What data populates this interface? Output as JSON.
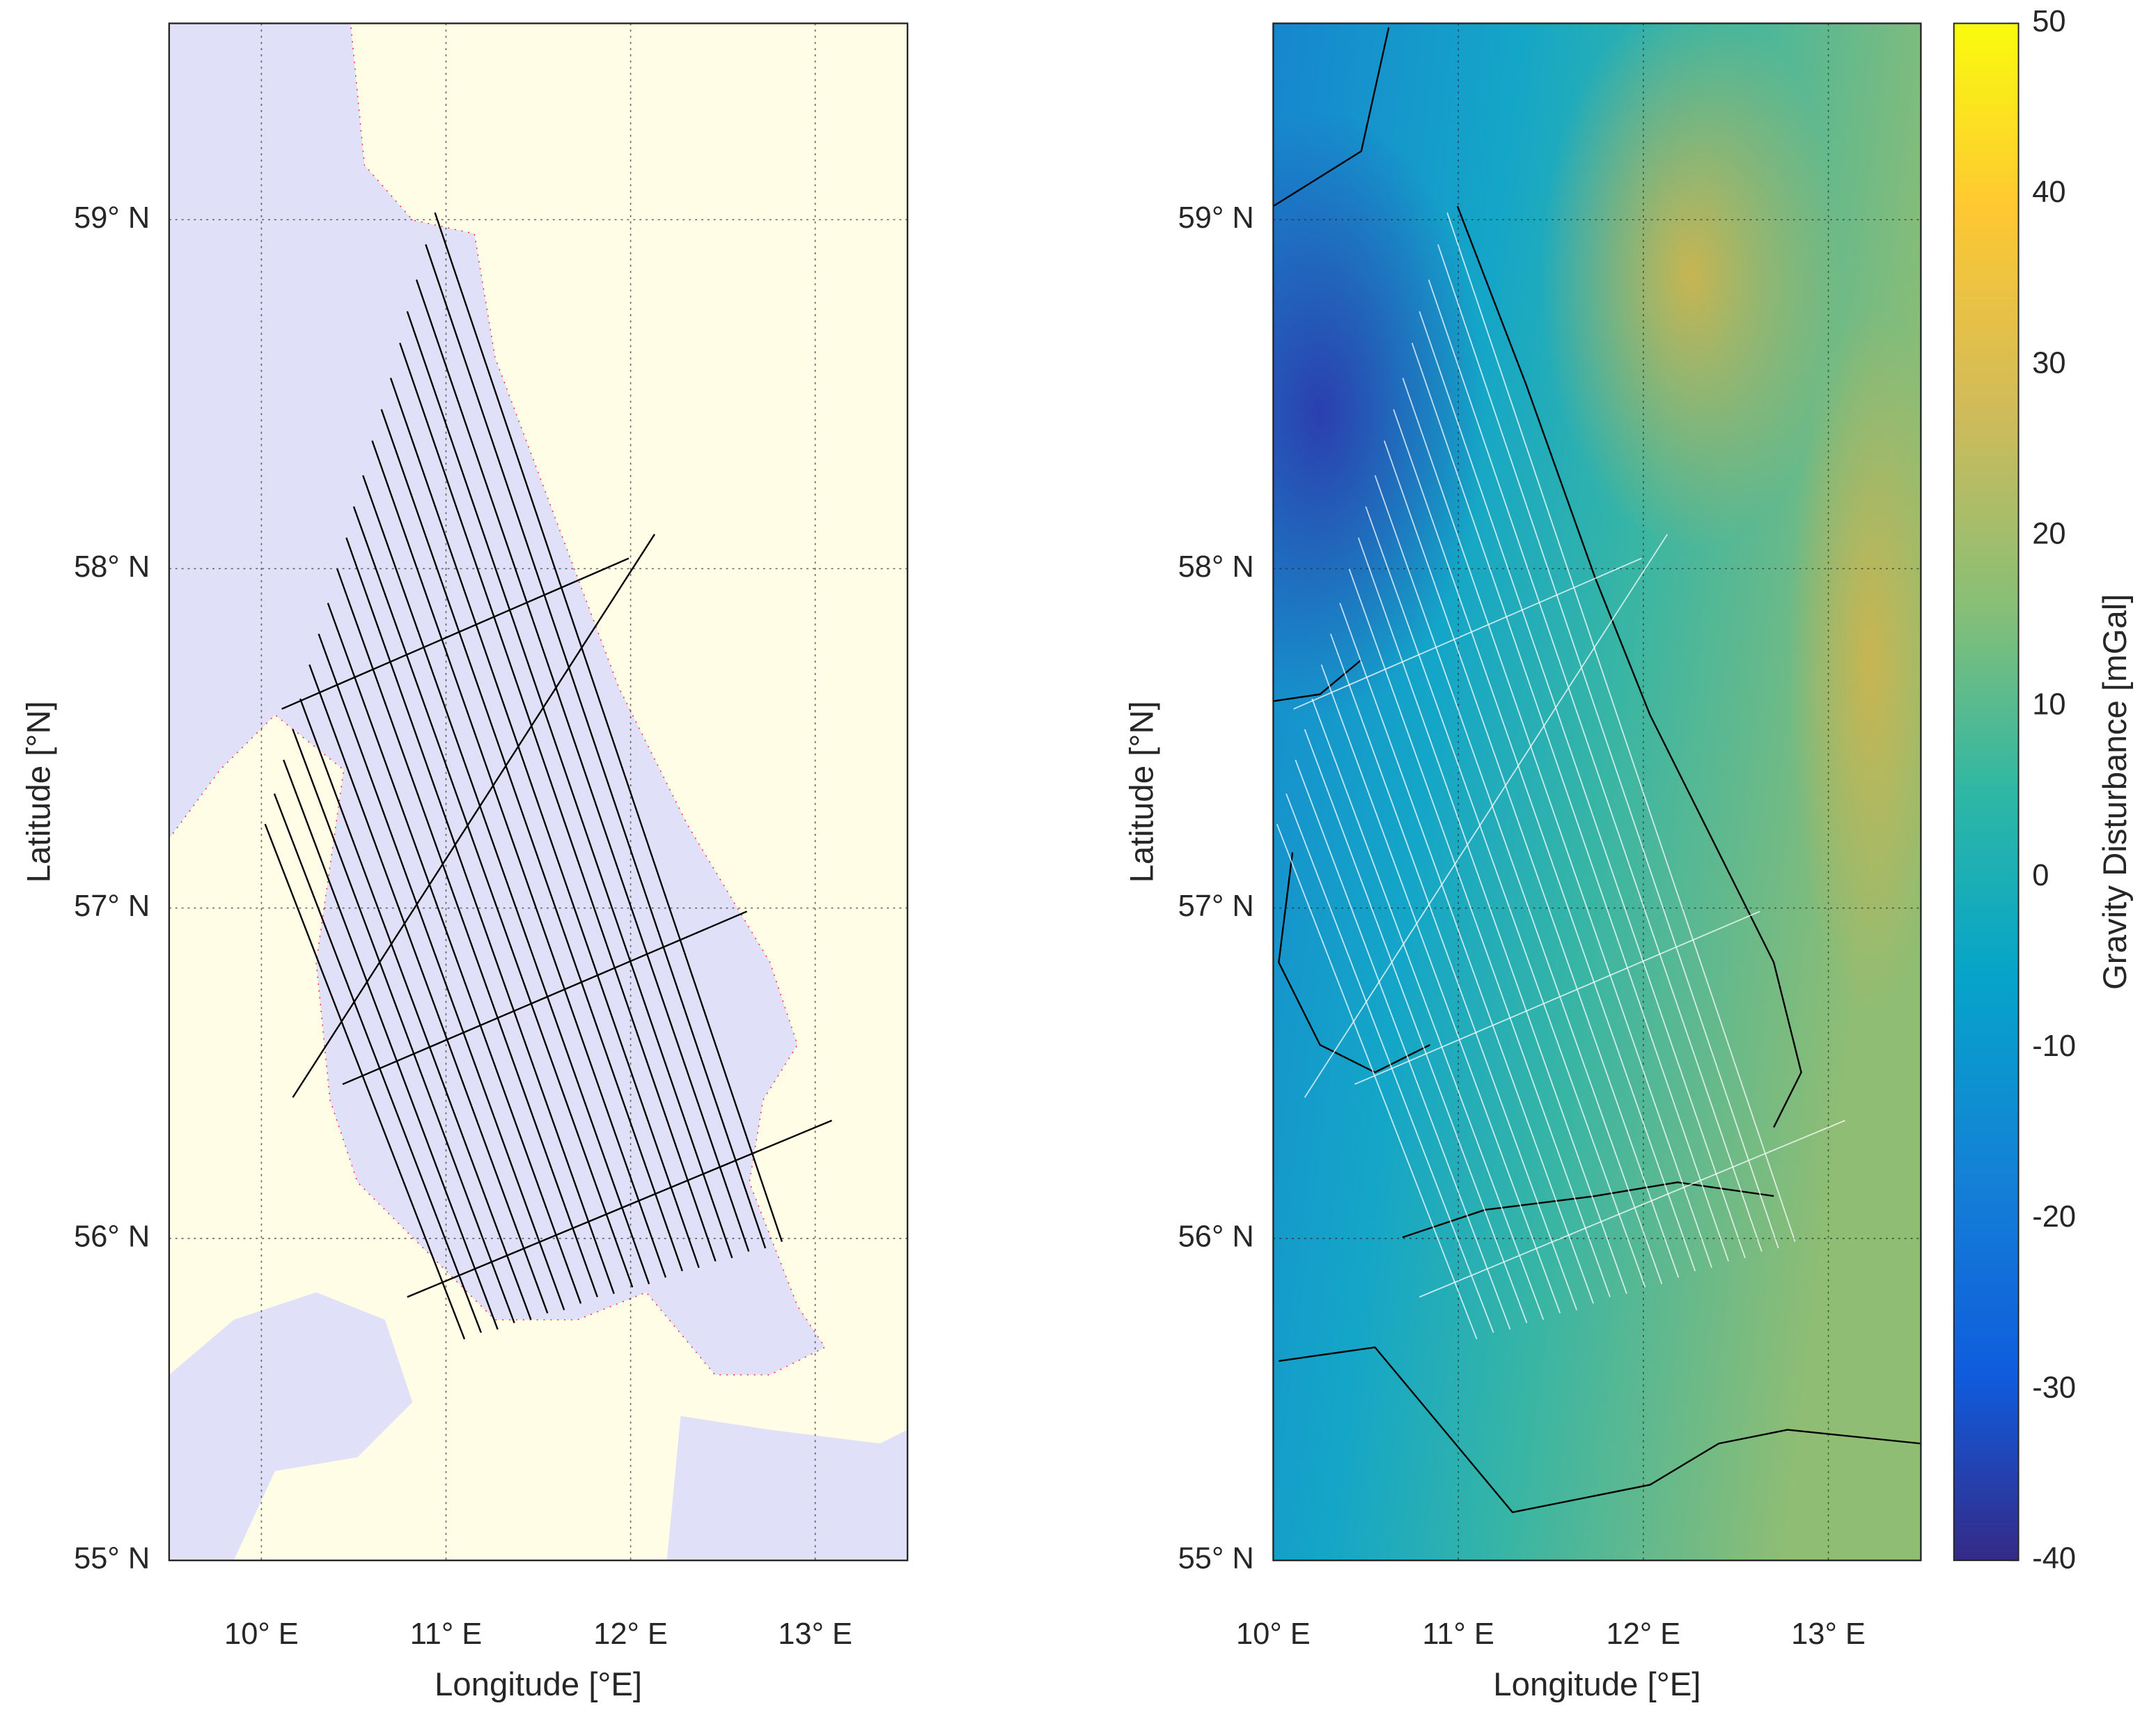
{
  "chart_data": [
    {
      "type": "map",
      "projection": "mercator",
      "xlabel": "Longitude [°E]",
      "ylabel": "Latitude [°N]",
      "xlim": [
        9.5,
        13.5
      ],
      "ylim": [
        55,
        59.55
      ],
      "xticks": [
        {
          "value": 10,
          "label": "10° E"
        },
        {
          "value": 11,
          "label": "11° E"
        },
        {
          "value": 12,
          "label": "12° E"
        },
        {
          "value": 13,
          "label": "13° E"
        }
      ],
      "yticks": [
        {
          "value": 55,
          "label": "55° N"
        },
        {
          "value": 56,
          "label": "56° N"
        },
        {
          "value": 57,
          "label": "57° N"
        },
        {
          "value": 58,
          "label": "58° N"
        },
        {
          "value": 59,
          "label": "59° N"
        }
      ],
      "grid": true,
      "track_color": "#000000",
      "tracks": [
        {
          "lon": [
            10.94,
            12.82
          ],
          "lat": [
            59.02,
            55.99
          ]
        },
        {
          "lon": [
            10.89,
            12.73
          ],
          "lat": [
            58.93,
            55.97
          ]
        },
        {
          "lon": [
            10.84,
            12.64
          ],
          "lat": [
            58.83,
            55.96
          ]
        },
        {
          "lon": [
            10.79,
            12.55
          ],
          "lat": [
            58.74,
            55.94
          ]
        },
        {
          "lon": [
            10.75,
            12.46
          ],
          "lat": [
            58.65,
            55.93
          ]
        },
        {
          "lon": [
            10.7,
            12.37
          ],
          "lat": [
            58.55,
            55.91
          ]
        },
        {
          "lon": [
            10.65,
            12.28
          ],
          "lat": [
            58.46,
            55.9
          ]
        },
        {
          "lon": [
            10.6,
            12.19
          ],
          "lat": [
            58.37,
            55.88
          ]
        },
        {
          "lon": [
            10.55,
            12.1
          ],
          "lat": [
            58.27,
            55.86
          ]
        },
        {
          "lon": [
            10.5,
            12.01
          ],
          "lat": [
            58.18,
            55.85
          ]
        },
        {
          "lon": [
            10.46,
            11.91
          ],
          "lat": [
            58.09,
            55.83
          ]
        },
        {
          "lon": [
            10.41,
            11.82
          ],
          "lat": [
            58.0,
            55.82
          ]
        },
        {
          "lon": [
            10.36,
            11.73
          ],
          "lat": [
            57.9,
            55.8
          ]
        },
        {
          "lon": [
            10.31,
            11.64
          ],
          "lat": [
            57.81,
            55.78
          ]
        },
        {
          "lon": [
            10.26,
            11.55
          ],
          "lat": [
            57.72,
            55.77
          ]
        },
        {
          "lon": [
            10.21,
            11.46
          ],
          "lat": [
            57.62,
            55.75
          ]
        },
        {
          "lon": [
            10.17,
            11.37
          ],
          "lat": [
            57.53,
            55.74
          ]
        },
        {
          "lon": [
            10.12,
            11.28
          ],
          "lat": [
            57.44,
            55.72
          ]
        },
        {
          "lon": [
            10.07,
            11.19
          ],
          "lat": [
            57.34,
            55.71
          ]
        },
        {
          "lon": [
            10.02,
            11.1
          ],
          "lat": [
            57.25,
            55.69
          ]
        },
        {
          "lon": [
            10.11,
            11.99
          ],
          "lat": [
            57.59,
            58.03
          ]
        },
        {
          "lon": [
            10.44,
            12.63
          ],
          "lat": [
            56.47,
            56.99
          ]
        },
        {
          "lon": [
            10.79,
            13.09
          ],
          "lat": [
            55.82,
            56.36
          ]
        },
        {
          "lon": [
            10.17,
            12.13
          ],
          "lat": [
            56.43,
            58.1
          ]
        }
      ]
    },
    {
      "type": "map",
      "projection": "mercator",
      "xlabel": "Longitude [°E]",
      "ylabel": "Latitude [°N]",
      "xlim": [
        10,
        13.5
      ],
      "ylim": [
        55,
        59.55
      ],
      "xticks": [
        {
          "value": 10,
          "label": "10° E"
        },
        {
          "value": 11,
          "label": "11° E"
        },
        {
          "value": 12,
          "label": "12° E"
        },
        {
          "value": 13,
          "label": "13° E"
        }
      ],
      "yticks": [
        {
          "value": 55,
          "label": "55° N"
        },
        {
          "value": 56,
          "label": "56° N"
        },
        {
          "value": 57,
          "label": "57° N"
        },
        {
          "value": 58,
          "label": "58° N"
        },
        {
          "value": 59,
          "label": "59° N"
        }
      ],
      "grid": true,
      "track_color": "#ffffff",
      "colorbar": {
        "label": "Gravity Disturbance [mGal]",
        "lim": [
          -40,
          50
        ],
        "ticks": [
          -40,
          -30,
          -20,
          -10,
          0,
          10,
          20,
          30,
          40,
          50
        ]
      }
    }
  ]
}
